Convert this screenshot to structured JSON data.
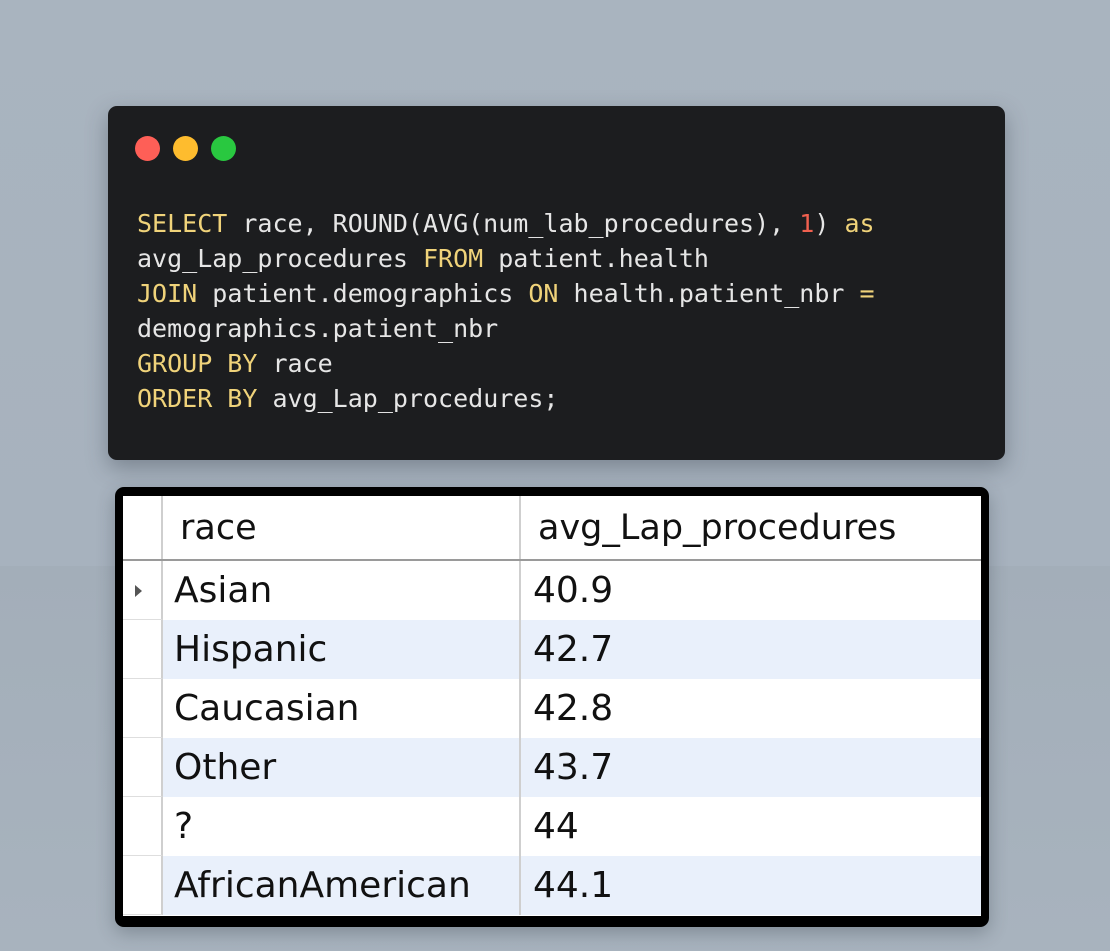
{
  "code_window": {
    "controls": [
      "close-dot",
      "minimize-dot",
      "maximize-dot"
    ],
    "lines": [
      {
        "parts": [
          {
            "t": "SELECT",
            "c": "kw"
          },
          {
            "t": " race, ROUND(AVG(num_lab_procedures), ",
            "c": "txt"
          },
          {
            "t": "1",
            "c": "num"
          },
          {
            "t": ") ",
            "c": "txt"
          },
          {
            "t": "as",
            "c": "kw"
          }
        ]
      },
      {
        "parts": [
          {
            "t": "avg_Lap_procedures ",
            "c": "txt"
          },
          {
            "t": "FROM",
            "c": "kw"
          },
          {
            "t": " patient.health",
            "c": "txt"
          }
        ]
      },
      {
        "parts": [
          {
            "t": "JOIN",
            "c": "kw"
          },
          {
            "t": " patient.demographics ",
            "c": "txt"
          },
          {
            "t": "ON",
            "c": "kw"
          },
          {
            "t": " health.patient_nbr ",
            "c": "txt"
          },
          {
            "t": "=",
            "c": "kw"
          }
        ]
      },
      {
        "parts": [
          {
            "t": "demographics.patient_nbr",
            "c": "txt"
          }
        ]
      },
      {
        "parts": [
          {
            "t": "GROUP BY",
            "c": "kw"
          },
          {
            "t": " race",
            "c": "txt"
          }
        ]
      },
      {
        "parts": [
          {
            "t": "ORDER BY",
            "c": "kw"
          },
          {
            "t": " avg_Lap_procedures;",
            "c": "txt"
          }
        ]
      }
    ]
  },
  "result_grid": {
    "columns": [
      "race",
      "avg_Lap_procedures"
    ],
    "rows": [
      {
        "race": "Asian",
        "avg": "40.9"
      },
      {
        "race": "Hispanic",
        "avg": "42.7"
      },
      {
        "race": "Caucasian",
        "avg": "42.8"
      },
      {
        "race": "Other",
        "avg": "43.7"
      },
      {
        "race": "?",
        "avg": "44"
      },
      {
        "race": "AfricanAmerican",
        "avg": "44.1"
      }
    ],
    "current_row": 0
  },
  "colors": {
    "keyword": "#f0d37a",
    "number": "#f0604f",
    "code_text": "#e6e6e6",
    "code_bg": "#1c1d1f",
    "alt_row": "#e9f0fb"
  }
}
